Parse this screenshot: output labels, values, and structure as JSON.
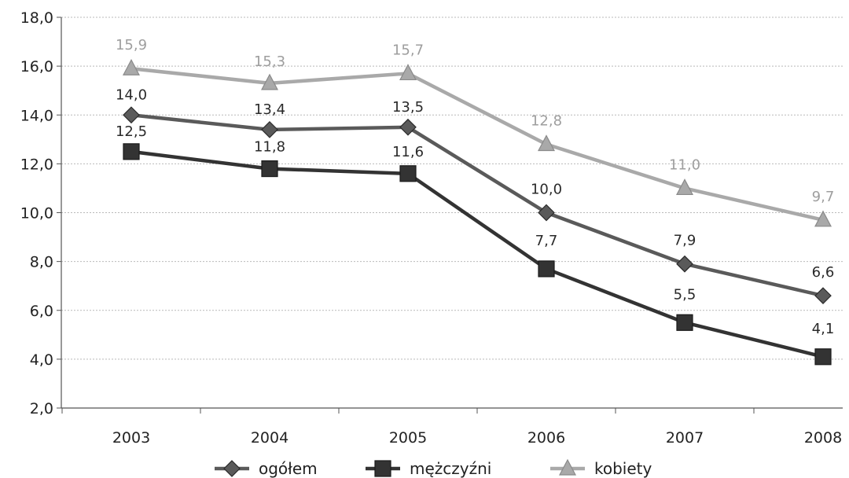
{
  "chart_data": {
    "type": "line",
    "title": "",
    "xlabel": "",
    "ylabel": "",
    "categories": [
      "2003",
      "2004",
      "2005",
      "2006",
      "2007",
      "2008"
    ],
    "ylim": [
      2.0,
      18.0
    ],
    "yticks": [
      "2,0",
      "4,0",
      "6,0",
      "8,0",
      "10,0",
      "12,0",
      "14,0",
      "16,0",
      "18,0"
    ],
    "grid": true,
    "legend_position": "bottom",
    "series": [
      {
        "name": "ogółem",
        "color": "#5a5a5a",
        "marker": "diamond",
        "values": [
          14.0,
          13.4,
          13.5,
          10.0,
          7.9,
          6.6
        ],
        "labels": [
          "14,0",
          "13,4",
          "13,5",
          "10,0",
          "7,9",
          "6,6"
        ]
      },
      {
        "name": "mężczyźni",
        "color": "#333333",
        "marker": "square",
        "values": [
          12.5,
          11.8,
          11.6,
          7.7,
          5.5,
          4.1
        ],
        "labels": [
          "12,5",
          "11,8",
          "11,6",
          "7,7",
          "5,5",
          "4,1"
        ]
      },
      {
        "name": "kobiety",
        "color": "#a9a9a9",
        "marker": "triangle",
        "values": [
          15.9,
          15.3,
          15.7,
          12.8,
          11.0,
          9.7
        ],
        "labels": [
          "15,9",
          "15,3",
          "15,7",
          "12,8",
          "11,0",
          "9,7"
        ]
      }
    ]
  }
}
